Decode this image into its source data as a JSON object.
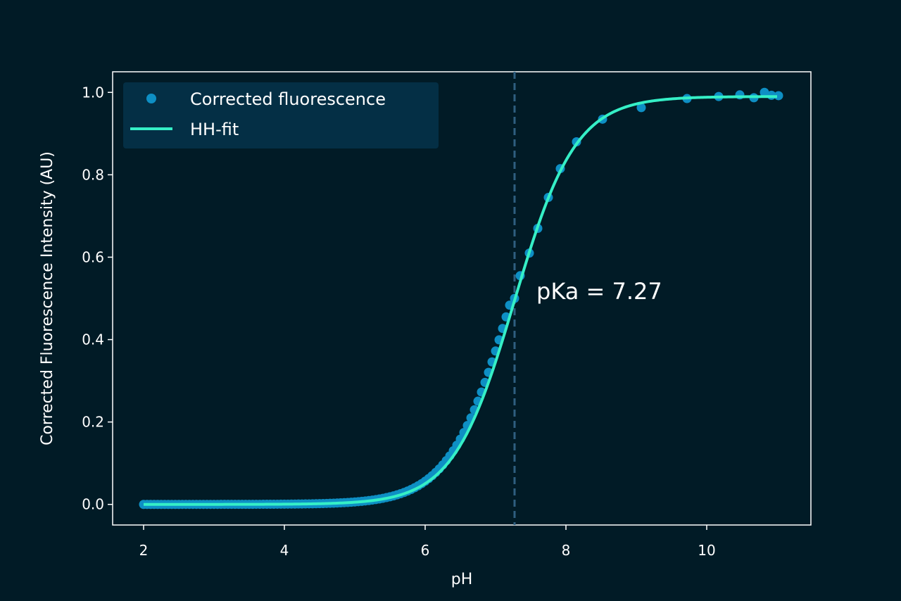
{
  "chart_data": {
    "type": "scatter",
    "title": "",
    "xlabel": "pH",
    "ylabel": "Corrected Fluorescence Intensity (AU)",
    "xlim": [
      1.56,
      11.48
    ],
    "ylim": [
      -0.05,
      1.05
    ],
    "xticks": [
      2,
      4,
      6,
      8,
      10
    ],
    "xtick_labels": [
      "2",
      "4",
      "6",
      "8",
      "10"
    ],
    "yticks": [
      0.0,
      0.2,
      0.4,
      0.6,
      0.8,
      1.0
    ],
    "ytick_labels": [
      "0.0",
      "0.2",
      "0.4",
      "0.6",
      "0.8",
      "1.0"
    ],
    "grid": false,
    "legend": {
      "location": "upper-left",
      "entries": [
        {
          "label": "Corrected fluorescence",
          "marker": "dot"
        },
        {
          "label": "HH-fit",
          "marker": "line"
        }
      ]
    },
    "colors": {
      "background": "#011b26",
      "points": "#0e8fc4",
      "fit": "#35efc6",
      "pka_line": "#2f5f80",
      "legend_bg": "#042f45",
      "axes": "#ffffff"
    },
    "fit": {
      "model": "Henderson-Hasselbalch sigmoid",
      "pKa": 7.27,
      "slope": 1.0,
      "bottom": 0.0,
      "top": 0.99
    },
    "pka_line": {
      "x": 7.27
    },
    "annotation": {
      "text": "pKa = 7.27",
      "x": 7.58,
      "y": 0.52
    },
    "series": [
      {
        "name": "Corrected fluorescence",
        "dense_range": {
          "x_start": 2.0,
          "x_end": 7.2,
          "step": 0.05
        },
        "points": [
          {
            "x": 7.27,
            "y": 0.5
          },
          {
            "x": 7.35,
            "y": 0.555
          },
          {
            "x": 7.48,
            "y": 0.61
          },
          {
            "x": 7.6,
            "y": 0.67
          },
          {
            "x": 7.75,
            "y": 0.745
          },
          {
            "x": 7.92,
            "y": 0.815
          },
          {
            "x": 8.15,
            "y": 0.88
          },
          {
            "x": 8.52,
            "y": 0.935
          },
          {
            "x": 9.07,
            "y": 0.963
          },
          {
            "x": 9.72,
            "y": 0.985
          },
          {
            "x": 10.17,
            "y": 0.99
          },
          {
            "x": 10.47,
            "y": 0.994
          },
          {
            "x": 10.67,
            "y": 0.987
          },
          {
            "x": 10.82,
            "y": 1.0
          },
          {
            "x": 10.92,
            "y": 0.993
          },
          {
            "x": 11.02,
            "y": 0.992
          }
        ]
      }
    ]
  }
}
